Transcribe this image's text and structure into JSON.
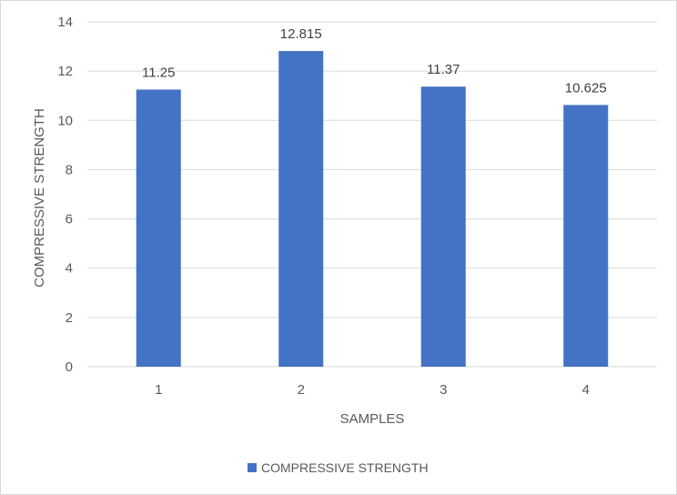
{
  "chart_data": {
    "type": "bar",
    "categories": [
      "1",
      "2",
      "3",
      "4"
    ],
    "series": [
      {
        "name": "COMPRESSIVE STRENGTH",
        "values": [
          11.25,
          12.815,
          11.37,
          10.625
        ],
        "data_labels": [
          "11.25",
          "12.815",
          "11.37",
          "10.625"
        ]
      }
    ],
    "title": "",
    "xlabel": "SAMPLES",
    "ylabel": "COMPRESSIVE STRENGTH",
    "ylim": [
      0,
      14
    ],
    "yticks": [
      "0",
      "2",
      "4",
      "6",
      "8",
      "10",
      "12",
      "14"
    ],
    "grid": true,
    "legend": "bottom",
    "bar_color": "#4472C4"
  }
}
